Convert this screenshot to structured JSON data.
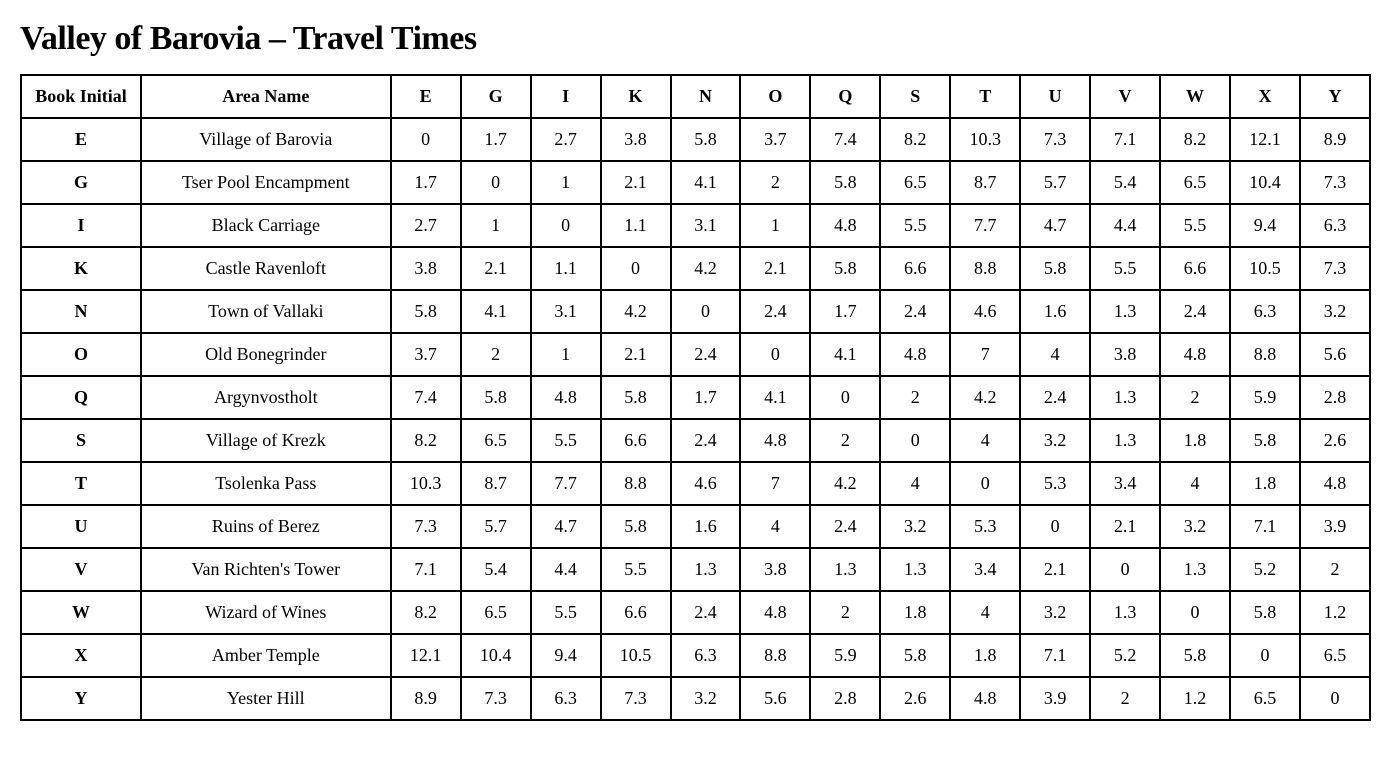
{
  "title": "Valley of Barovia – Travel Times",
  "header": {
    "col_initial": "Book Initial",
    "col_name": "Area Name",
    "letters": [
      "E",
      "G",
      "I",
      "K",
      "N",
      "O",
      "Q",
      "S",
      "T",
      "U",
      "V",
      "W",
      "X",
      "Y"
    ]
  },
  "rows": [
    {
      "initial": "E",
      "name": "Village of Barovia",
      "values": [
        "0",
        "1.7",
        "2.7",
        "3.8",
        "5.8",
        "3.7",
        "7.4",
        "8.2",
        "10.3",
        "7.3",
        "7.1",
        "8.2",
        "12.1",
        "8.9"
      ]
    },
    {
      "initial": "G",
      "name": "Tser Pool Encampment",
      "values": [
        "1.7",
        "0",
        "1",
        "2.1",
        "4.1",
        "2",
        "5.8",
        "6.5",
        "8.7",
        "5.7",
        "5.4",
        "6.5",
        "10.4",
        "7.3"
      ]
    },
    {
      "initial": "I",
      "name": "Black Carriage",
      "values": [
        "2.7",
        "1",
        "0",
        "1.1",
        "3.1",
        "1",
        "4.8",
        "5.5",
        "7.7",
        "4.7",
        "4.4",
        "5.5",
        "9.4",
        "6.3"
      ]
    },
    {
      "initial": "K",
      "name": "Castle Ravenloft",
      "values": [
        "3.8",
        "2.1",
        "1.1",
        "0",
        "4.2",
        "2.1",
        "5.8",
        "6.6",
        "8.8",
        "5.8",
        "5.5",
        "6.6",
        "10.5",
        "7.3"
      ]
    },
    {
      "initial": "N",
      "name": "Town of Vallaki",
      "values": [
        "5.8",
        "4.1",
        "3.1",
        "4.2",
        "0",
        "2.4",
        "1.7",
        "2.4",
        "4.6",
        "1.6",
        "1.3",
        "2.4",
        "6.3",
        "3.2"
      ]
    },
    {
      "initial": "O",
      "name": "Old Bonegrinder",
      "values": [
        "3.7",
        "2",
        "1",
        "2.1",
        "2.4",
        "0",
        "4.1",
        "4.8",
        "7",
        "4",
        "3.8",
        "4.8",
        "8.8",
        "5.6"
      ]
    },
    {
      "initial": "Q",
      "name": "Argynvostholt",
      "values": [
        "7.4",
        "5.8",
        "4.8",
        "5.8",
        "1.7",
        "4.1",
        "0",
        "2",
        "4.2",
        "2.4",
        "1.3",
        "2",
        "5.9",
        "2.8"
      ]
    },
    {
      "initial": "S",
      "name": "Village of Krezk",
      "values": [
        "8.2",
        "6.5",
        "5.5",
        "6.6",
        "2.4",
        "4.8",
        "2",
        "0",
        "4",
        "3.2",
        "1.3",
        "1.8",
        "5.8",
        "2.6"
      ]
    },
    {
      "initial": "T",
      "name": "Tsolenka Pass",
      "values": [
        "10.3",
        "8.7",
        "7.7",
        "8.8",
        "4.6",
        "7",
        "4.2",
        "4",
        "0",
        "5.3",
        "3.4",
        "4",
        "1.8",
        "4.8"
      ]
    },
    {
      "initial": "U",
      "name": "Ruins of Berez",
      "values": [
        "7.3",
        "5.7",
        "4.7",
        "5.8",
        "1.6",
        "4",
        "2.4",
        "3.2",
        "5.3",
        "0",
        "2.1",
        "3.2",
        "7.1",
        "3.9"
      ]
    },
    {
      "initial": "V",
      "name": "Van Richten's Tower",
      "values": [
        "7.1",
        "5.4",
        "4.4",
        "5.5",
        "1.3",
        "3.8",
        "1.3",
        "1.3",
        "3.4",
        "2.1",
        "0",
        "1.3",
        "5.2",
        "2"
      ]
    },
    {
      "initial": "W",
      "name": "Wizard of Wines",
      "values": [
        "8.2",
        "6.5",
        "5.5",
        "6.6",
        "2.4",
        "4.8",
        "2",
        "1.8",
        "4",
        "3.2",
        "1.3",
        "0",
        "5.8",
        "1.2"
      ]
    },
    {
      "initial": "X",
      "name": "Amber Temple",
      "values": [
        "12.1",
        "10.4",
        "9.4",
        "10.5",
        "6.3",
        "8.8",
        "5.9",
        "5.8",
        "1.8",
        "7.1",
        "5.2",
        "5.8",
        "0",
        "6.5"
      ]
    },
    {
      "initial": "Y",
      "name": "Yester Hill",
      "values": [
        "8.9",
        "7.3",
        "6.3",
        "7.3",
        "3.2",
        "5.6",
        "2.8",
        "2.6",
        "4.8",
        "3.9",
        "2",
        "1.2",
        "6.5",
        "0"
      ]
    }
  ],
  "style": {
    "background_color": "#ffffff",
    "text_color": "#000000",
    "border_color": "#000000",
    "title_fontsize": 34,
    "header_fontsize": 18,
    "cell_fontsize": 18,
    "font_family": "Georgia, serif"
  }
}
